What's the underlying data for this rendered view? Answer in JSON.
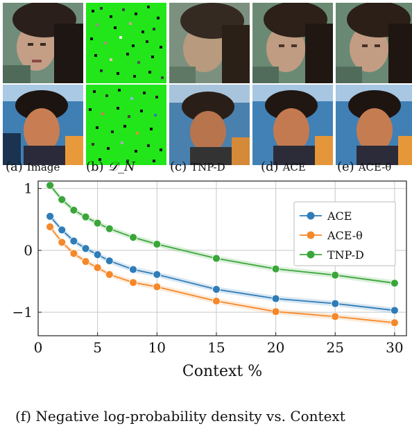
{
  "panels": [
    {
      "tag": "(a)",
      "label": "Image"
    },
    {
      "tag": "(b)",
      "label": "𝒟_N"
    },
    {
      "tag": "(c)",
      "label": "TNP-D"
    },
    {
      "tag": "(d)",
      "label": "ACE"
    },
    {
      "tag": "(e)",
      "label": "ACE-θ"
    }
  ],
  "figure_caption": "(f) Negative log-probability density vs. Context",
  "chart_data": {
    "type": "line",
    "title": "",
    "xlabel": "Context %",
    "ylabel": "",
    "xlim": [
      0,
      31
    ],
    "ylim": [
      -1.38,
      1.12
    ],
    "xticks": [
      0,
      5,
      10,
      15,
      20,
      25,
      30
    ],
    "yticks": [
      -1,
      0,
      1
    ],
    "ytick_labels": [
      "−1",
      "0",
      "1"
    ],
    "grid": true,
    "legend_position": "top-right",
    "x": [
      1,
      2,
      3,
      4,
      5,
      6,
      8,
      10,
      15,
      20,
      25,
      30
    ],
    "series": [
      {
        "name": "ACE",
        "color": "#2e7cb8",
        "values": [
          0.55,
          0.33,
          0.15,
          0.03,
          -0.07,
          -0.17,
          -0.31,
          -0.39,
          -0.63,
          -0.78,
          -0.86,
          -0.97
        ]
      },
      {
        "name": "ACE-θ",
        "color": "#f5882a",
        "values": [
          0.38,
          0.13,
          -0.05,
          -0.18,
          -0.28,
          -0.39,
          -0.52,
          -0.59,
          -0.82,
          -0.99,
          -1.07,
          -1.17
        ]
      },
      {
        "name": "TNP-D",
        "color": "#3aa63a",
        "values": [
          1.05,
          0.82,
          0.65,
          0.54,
          0.44,
          0.35,
          0.21,
          0.1,
          -0.13,
          -0.3,
          -0.4,
          -0.53
        ]
      }
    ]
  }
}
